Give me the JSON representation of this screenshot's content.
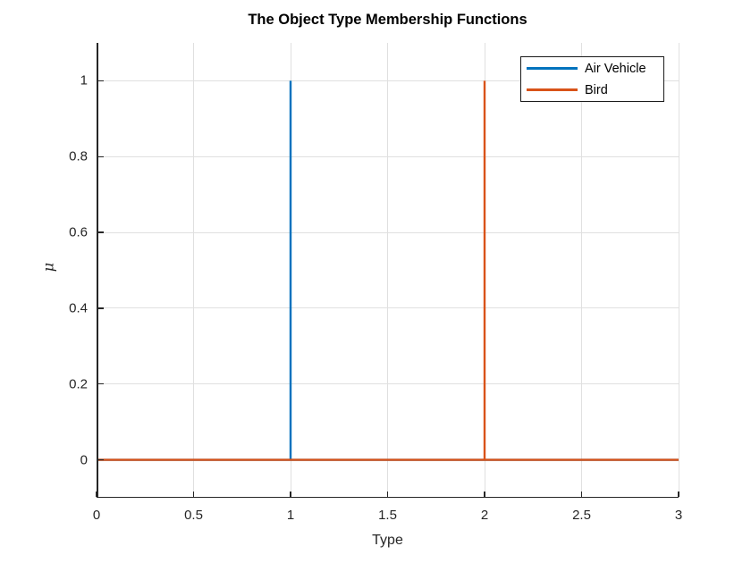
{
  "chart_data": {
    "type": "line",
    "title": "The Object Type Membership Functions",
    "xlabel": "Type",
    "ylabel": "μ",
    "xlim": [
      0,
      3
    ],
    "ylim": [
      -0.1,
      1.1
    ],
    "xticks": [
      0,
      0.5,
      1,
      1.5,
      2,
      2.5,
      3
    ],
    "xtick_labels": [
      "0",
      "0.5",
      "1",
      "1.5",
      "2",
      "2.5",
      "3"
    ],
    "yticks": [
      0,
      0.2,
      0.4,
      0.6,
      0.8,
      1
    ],
    "ytick_labels": [
      "0",
      "0.2",
      "0.4",
      "0.6",
      "0.8",
      "1"
    ],
    "grid": true,
    "box": false,
    "legend_position": "top-right",
    "colors": {
      "axis": "#262626",
      "grid": "#e0e0e0",
      "background": "#ffffff"
    },
    "series": [
      {
        "name": "Air Vehicle",
        "color": "#0072BD",
        "points": [
          [
            0,
            0
          ],
          [
            1,
            0
          ],
          [
            1,
            1
          ],
          [
            1,
            0
          ],
          [
            3,
            0
          ]
        ]
      },
      {
        "name": "Bird",
        "color": "#D95319",
        "points": [
          [
            0,
            0
          ],
          [
            2,
            0
          ],
          [
            2,
            1
          ],
          [
            2,
            0
          ],
          [
            3,
            0
          ]
        ]
      }
    ]
  }
}
